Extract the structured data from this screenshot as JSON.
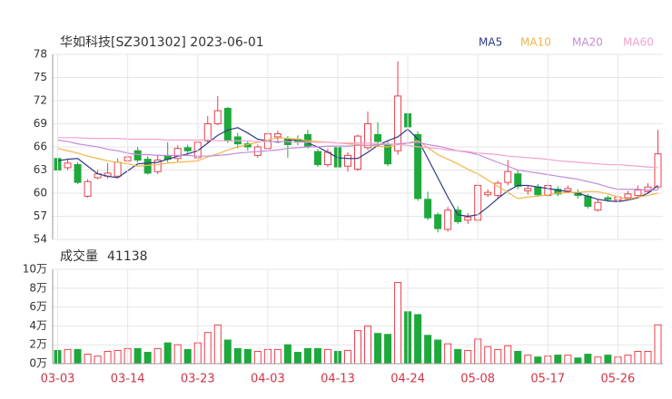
{
  "chart_data": [
    {
      "type": "candlestick",
      "title": "华如科技[SZ301302] 2023-06-01",
      "up_color": "#e8404e",
      "down_color": "#1fa83c",
      "open": [
        64.5,
        63.3,
        63.7,
        59.6,
        62.0,
        62.2,
        62.2,
        64.2,
        65.5,
        64.4,
        62.8,
        64.8,
        64.5,
        65.9,
        64.6,
        66.8,
        69.0,
        71.0,
        67.3,
        66.4,
        64.9,
        65.8,
        67.3,
        67.0,
        67.0,
        67.6,
        65.4,
        63.7,
        65.9,
        63.5,
        63.1,
        65.9,
        67.6,
        66.3,
        65.5,
        70.3,
        67.6,
        59.2,
        57.2,
        55.3,
        57.8,
        56.5,
        56.5,
        59.8,
        59.7,
        61.4,
        62.5,
        60.3,
        60.8,
        59.7,
        60.5,
        60.3,
        60.1,
        59.6,
        57.8,
        59.4,
        59.1,
        59.4,
        59.7,
        60.2,
        60.8
      ],
      "high": [
        65.0,
        64.5,
        64.0,
        61.8,
        63.0,
        63.9,
        64.5,
        65.7,
        66.0,
        64.8,
        65.0,
        66.6,
        66.2,
        66.3,
        66.9,
        70.0,
        72.6,
        71.2,
        67.8,
        66.8,
        66.3,
        68.0,
        68.1,
        67.4,
        67.5,
        68.2,
        65.7,
        65.8,
        66.2,
        65.3,
        67.6,
        70.6,
        69.2,
        66.7,
        77.1,
        70.5,
        68.0,
        60.2,
        57.5,
        58.2,
        58.3,
        57.4,
        61.3,
        60.5,
        61.6,
        64.3,
        63.0,
        61.0,
        61.2,
        61.3,
        60.9,
        61.0,
        60.5,
        59.9,
        59.2,
        59.7,
        59.8,
        60.3,
        61.0,
        61.3,
        68.2
      ],
      "low": [
        62.7,
        63.0,
        61.2,
        59.4,
        61.8,
        61.9,
        62.0,
        63.9,
        64.0,
        62.4,
        62.5,
        64.0,
        64.1,
        65.0,
        64.0,
        66.5,
        68.8,
        66.5,
        65.8,
        65.5,
        64.6,
        65.5,
        66.8,
        64.6,
        66.2,
        65.8,
        63.4,
        63.4,
        63.2,
        62.8,
        62.9,
        65.6,
        66.3,
        63.5,
        65.0,
        66.0,
        59.0,
        56.5,
        54.9,
        55.0,
        56.0,
        56.0,
        56.2,
        59.5,
        59.3,
        61.0,
        60.5,
        59.8,
        59.5,
        59.5,
        59.6,
        60.0,
        59.3,
        58.0,
        57.6,
        58.9,
        58.8,
        59.2,
        59.5,
        60.0,
        60.5
      ],
      "close": [
        63.0,
        63.9,
        61.4,
        61.5,
        62.5,
        62.6,
        64.0,
        64.7,
        64.3,
        62.6,
        64.3,
        64.4,
        65.8,
        65.5,
        66.6,
        69.0,
        70.7,
        66.8,
        66.4,
        66.0,
        66.0,
        67.7,
        67.7,
        66.3,
        66.6,
        66.1,
        63.7,
        65.3,
        63.4,
        64.9,
        67.4,
        69.0,
        66.7,
        63.8,
        72.6,
        68.6,
        59.3,
        56.8,
        55.4,
        57.8,
        56.3,
        56.9,
        61.0,
        60.1,
        61.3,
        62.8,
        60.9,
        60.6,
        59.8,
        61.0,
        59.9,
        60.6,
        59.7,
        58.3,
        58.8,
        59.2,
        59.5,
        59.9,
        60.4,
        60.8,
        65.1
      ],
      "series": [
        {
          "name": "MA5",
          "color": "#2f3a86",
          "values": [
            64.2,
            64.4,
            64.5,
            63.5,
            62.5,
            62.2,
            62.0,
            62.9,
            63.8,
            63.9,
            64.0,
            64.4,
            64.8,
            65.1,
            65.5,
            66.5,
            67.5,
            68.2,
            68.5,
            67.8,
            67.0,
            66.8,
            66.6,
            66.8,
            67.0,
            66.5,
            66.0,
            65.3,
            64.6,
            64.5,
            64.5,
            65.3,
            66.2,
            66.8,
            67.3,
            68.3,
            67.0,
            64.5,
            62.0,
            59.5,
            57.2,
            57.0,
            57.2,
            58.2,
            59.3,
            60.3,
            61.0,
            61.0,
            60.8,
            60.6,
            60.4,
            60.2,
            60.0,
            59.6,
            59.2,
            59.0,
            58.9,
            59.1,
            59.4,
            60.0,
            61.0
          ]
        },
        {
          "name": "MA10",
          "color": "#f2b54a",
          "values": [
            65.8,
            65.5,
            65.2,
            64.8,
            64.5,
            64.2,
            64.0,
            63.8,
            63.5,
            63.6,
            63.7,
            63.9,
            64.0,
            64.1,
            64.2,
            64.7,
            65.1,
            65.6,
            66.0,
            66.3,
            66.6,
            66.9,
            67.2,
            67.1,
            67.0,
            66.8,
            66.7,
            66.6,
            66.5,
            66.4,
            66.3,
            66.2,
            66.1,
            66.0,
            66.3,
            66.5,
            66.8,
            65.9,
            65.0,
            64.4,
            63.8,
            63.1,
            62.5,
            61.7,
            60.9,
            60.1,
            59.3,
            59.5,
            59.6,
            59.8,
            60.0,
            60.1,
            60.1,
            60.2,
            60.2,
            59.9,
            59.5,
            59.2,
            59.5,
            59.7,
            60.0
          ]
        },
        {
          "name": "MA20",
          "color": "#c48bdb",
          "values": [
            66.9,
            66.7,
            66.4,
            66.2,
            66.0,
            65.7,
            65.5,
            65.2,
            65.0,
            65.0,
            64.9,
            64.9,
            64.9,
            64.9,
            64.8,
            64.8,
            64.9,
            65.0,
            65.2,
            65.3,
            65.4,
            65.5,
            65.6,
            65.8,
            65.9,
            66.0,
            66.0,
            66.1,
            66.1,
            66.1,
            66.2,
            66.2,
            66.3,
            66.3,
            66.4,
            66.5,
            66.6,
            66.3,
            66.1,
            65.8,
            65.5,
            65.3,
            65.0,
            64.5,
            64.0,
            63.5,
            63.0,
            62.8,
            62.6,
            62.4,
            62.2,
            62.0,
            61.8,
            61.5,
            61.2,
            60.8,
            60.5,
            60.5,
            60.5,
            60.4,
            60.4
          ]
        },
        {
          "name": "MA60",
          "color": "#f3a2d0",
          "values": [
            67.2,
            67.2,
            67.2,
            67.1,
            67.1,
            67.1,
            67.1,
            67.0,
            67.0,
            67.0,
            67.0,
            66.9,
            66.9,
            66.9,
            66.9,
            66.9,
            66.8,
            66.8,
            66.8,
            66.8,
            66.7,
            66.7,
            66.7,
            66.7,
            66.6,
            66.6,
            66.6,
            66.6,
            66.5,
            66.5,
            66.5,
            66.5,
            66.4,
            66.4,
            66.3,
            66.2,
            66.0,
            65.9,
            65.8,
            65.6,
            65.5,
            65.4,
            65.2,
            65.1,
            65.0,
            64.8,
            64.7,
            64.6,
            64.5,
            64.4,
            64.2,
            64.1,
            64.0,
            63.9,
            63.8,
            63.7,
            63.7,
            63.6,
            63.5,
            63.4,
            63.3
          ]
        }
      ],
      "ylim": [
        54,
        78
      ],
      "yticks": [
        54,
        57,
        60,
        63,
        66,
        69,
        72,
        75,
        78
      ],
      "grid": true
    },
    {
      "type": "bar",
      "title": "成交量",
      "categories": [
        "03-03",
        null,
        null,
        null,
        null,
        null,
        null,
        "03-14",
        null,
        null,
        null,
        null,
        null,
        null,
        "03-23",
        null,
        null,
        null,
        null,
        null,
        null,
        "04-03",
        null,
        null,
        null,
        null,
        null,
        null,
        "04-13",
        null,
        null,
        null,
        null,
        null,
        null,
        "04-24",
        null,
        null,
        null,
        null,
        null,
        null,
        "05-08",
        null,
        null,
        null,
        null,
        null,
        null,
        "05-17",
        null,
        null,
        null,
        null,
        null,
        null,
        "05-26",
        null,
        null,
        null,
        null
      ],
      "values": [
        14000,
        15000,
        15000,
        10000,
        8000,
        13000,
        14000,
        16000,
        16000,
        12000,
        16000,
        22000,
        20000,
        15000,
        22000,
        33000,
        41000,
        25000,
        16000,
        15000,
        13000,
        15000,
        15000,
        20000,
        12000,
        16000,
        16000,
        15000,
        13000,
        14000,
        35000,
        40000,
        32000,
        31000,
        86000,
        55000,
        52000,
        30000,
        25000,
        21000,
        15000,
        14000,
        26000,
        18000,
        15000,
        19000,
        13000,
        9000,
        7000,
        8000,
        9000,
        9000,
        6000,
        10000,
        7000,
        9000,
        7000,
        9000,
        13000,
        13000,
        41138
      ],
      "ylim": [
        0,
        100000
      ],
      "yticks": [
        {
          "value": 0,
          "label": "0万"
        },
        {
          "value": 20000,
          "label": "2万"
        },
        {
          "value": 40000,
          "label": "4万"
        },
        {
          "value": 60000,
          "label": "6万"
        },
        {
          "value": 80000,
          "label": "8万"
        },
        {
          "value": 100000,
          "label": "10万"
        }
      ],
      "grid": true
    }
  ]
}
